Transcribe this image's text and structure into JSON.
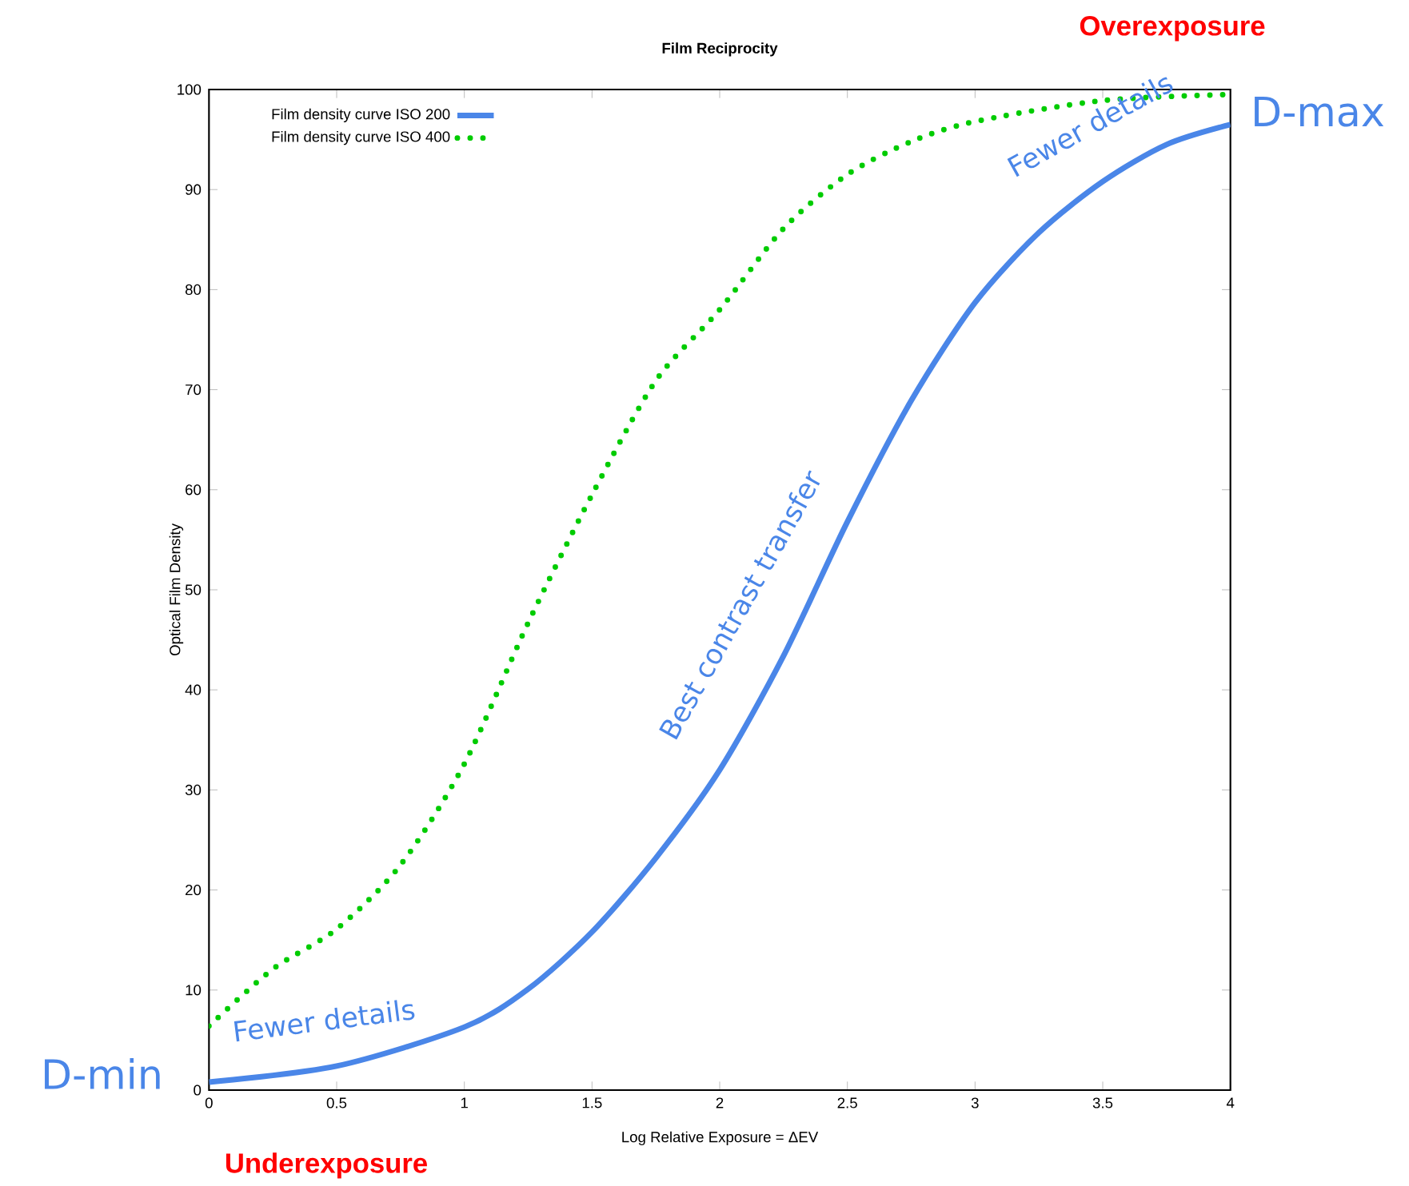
{
  "chart_data": {
    "type": "line",
    "title": "Film Reciprocity",
    "xlabel": "Log Relative Exposure  = ΔEV",
    "ylabel": "Optical Film Density",
    "xlim": [
      0,
      4
    ],
    "ylim": [
      0,
      100
    ],
    "xticks": [
      0,
      0.5,
      1,
      1.5,
      2,
      2.5,
      3,
      3.5,
      4
    ],
    "yticks": [
      0,
      10,
      20,
      30,
      40,
      50,
      60,
      70,
      80,
      90,
      100
    ],
    "grid": false,
    "legend": "top left",
    "marker": "none",
    "series": [
      {
        "name": "Film density curve ISO 200",
        "color": "#4a86e8",
        "line_style": "solid",
        "x": [
          0,
          0.5,
          1,
          1.25,
          1.5,
          1.75,
          2,
          2.25,
          2.5,
          2.75,
          3,
          3.25,
          3.5,
          3.75,
          4
        ],
        "values": [
          0.8,
          2.4,
          6.3,
          10.1,
          15.8,
          23.2,
          32,
          43.4,
          56.8,
          68.9,
          78.7,
          85.7,
          90.8,
          94.5,
          96.5
        ]
      },
      {
        "name": "Film density curve ISO 400",
        "color": "#00cc00",
        "line_style": "dotted",
        "x": [
          0,
          0.25,
          0.5,
          0.75,
          1,
          1.25,
          1.5,
          1.75,
          2,
          2.25,
          2.5,
          2.75,
          3,
          3.5,
          4
        ],
        "values": [
          6.4,
          12.1,
          16.1,
          22.5,
          32.6,
          46.7,
          59.5,
          70.9,
          78,
          86.1,
          91.5,
          94.8,
          96.8,
          98.9,
          99.5
        ]
      }
    ],
    "annotations": [
      "Overexposure",
      "Underexposure",
      {
        "text": "D-max",
        "x": 4,
        "y": 96.5
      },
      {
        "text": "D-min",
        "x": 0,
        "y": 0.8
      },
      "Fewer details",
      "Best contrast transfer",
      "Fewer details"
    ]
  }
}
